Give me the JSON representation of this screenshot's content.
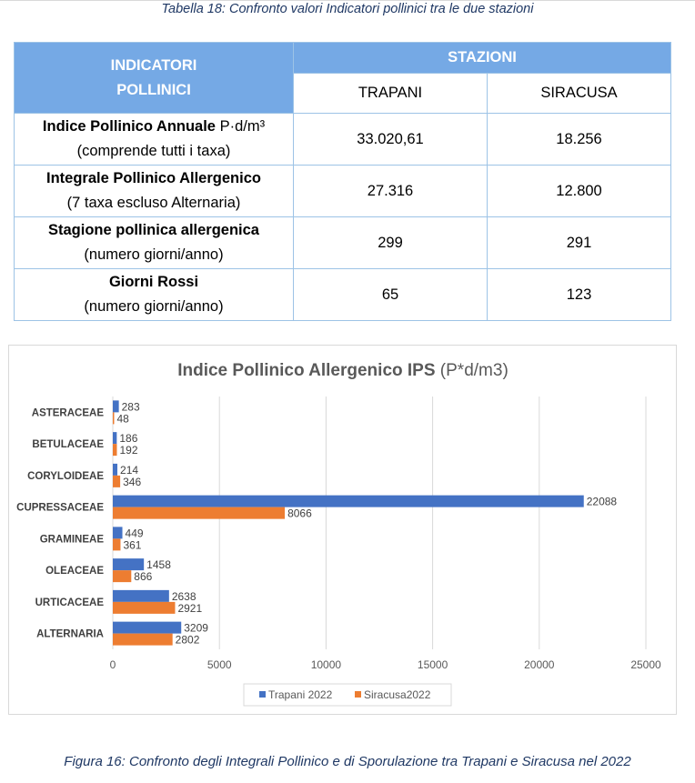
{
  "table_caption": "Tabella 18: Confronto valori Indicatori pollinici tra le due stazioni",
  "figure_caption": "Figura 16: Confronto degli Integrali Pollinico e di Sporulazione tra Trapani e Siracusa nel 2022",
  "table": {
    "header_indicators_line1": "INDICATORI",
    "header_indicators_line2": "POLLINICI",
    "header_stations": "STAZIONI",
    "stations": [
      "TRAPANI",
      "SIRACUSA"
    ],
    "rows": [
      {
        "label": "Indice Pollinico Annuale",
        "unit": "P·d/m³",
        "sub": "(comprende tutti i taxa)",
        "trapani": "33.020,61",
        "siracusa": "18.256"
      },
      {
        "label": "Integrale Pollinico Allergenico",
        "unit": "",
        "sub": "(7 taxa escluso Alternaria)",
        "trapani": "27.316",
        "siracusa": "12.800"
      },
      {
        "label": "Stagione pollinica allergenica",
        "unit": "",
        "sub": "(numero giorni/anno)",
        "trapani": "299",
        "siracusa": "291"
      },
      {
        "label": "Giorni Rossi",
        "unit": "",
        "sub": "(numero giorni/anno)",
        "trapani": "65",
        "siracusa": "123"
      }
    ]
  },
  "chart_data": {
    "type": "bar",
    "orientation": "horizontal",
    "title": "Indice Pollinico Allergenico IPS",
    "title_unit": "(P*d/m3)",
    "categories": [
      "ASTERACEAE",
      "BETULACEAE",
      "CORYLOIDEAE",
      "CUPRESSACEAE",
      "GRAMINEAE",
      "OLEACEAE",
      "URTICACEAE",
      "ALTERNARIA"
    ],
    "series": [
      {
        "name": "Trapani 2022",
        "color": "#4472c4",
        "values": [
          283,
          186,
          214,
          22088,
          449,
          1458,
          2638,
          3209
        ]
      },
      {
        "name": "Siracusa2022",
        "color": "#ed7d31",
        "values": [
          48,
          192,
          346,
          8066,
          361,
          866,
          2921,
          2802
        ]
      }
    ],
    "xlim": [
      0,
      25000
    ],
    "xticks": [
      0,
      5000,
      10000,
      15000,
      20000,
      25000
    ],
    "grid": true,
    "legend_position": "bottom",
    "data_labels": true
  }
}
